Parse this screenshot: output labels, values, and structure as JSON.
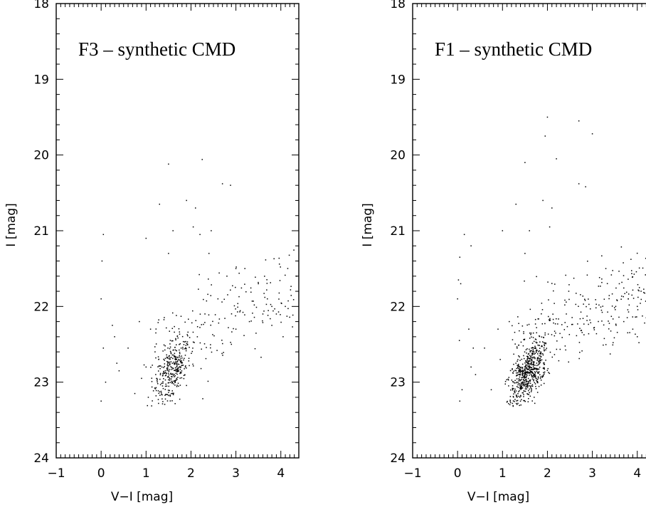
{
  "chart_data": [
    {
      "type": "scatter",
      "title": "F3 – synthetic CMD",
      "xlabel": "V−I [mag]",
      "ylabel": "I [mag]",
      "xlim": [
        -1,
        4.4
      ],
      "ylim": [
        24,
        18
      ],
      "y_inverted": true,
      "x_ticks": [
        -1,
        0,
        1,
        2,
        3,
        4
      ],
      "x_tick_labels": [
        "−1",
        "0",
        "1",
        "2",
        "3",
        "4"
      ],
      "y_ticks": [
        18,
        19,
        20,
        21,
        22,
        23,
        24
      ],
      "y_tick_labels": [
        "18",
        "19",
        "20",
        "21",
        "22",
        "23",
        "24"
      ],
      "grid": false,
      "sparse_points": [
        [
          1.5,
          20.12
        ],
        [
          2.25,
          20.06
        ],
        [
          2.7,
          20.38
        ],
        [
          2.88,
          20.4
        ],
        [
          1.0,
          21.1
        ],
        [
          1.3,
          20.65
        ],
        [
          0.05,
          21.05
        ],
        [
          0.02,
          21.4
        ],
        [
          0.0,
          21.9
        ],
        [
          0.05,
          22.55
        ],
        [
          0.25,
          22.25
        ],
        [
          0.3,
          22.4
        ],
        [
          0.35,
          22.75
        ],
        [
          0.4,
          22.85
        ],
        [
          0.1,
          23.0
        ],
        [
          0.0,
          23.25
        ],
        [
          0.6,
          22.55
        ],
        [
          0.75,
          23.15
        ],
        [
          1.9,
          20.6
        ],
        [
          2.1,
          20.7
        ],
        [
          2.05,
          20.95
        ],
        [
          2.2,
          21.05
        ],
        [
          1.6,
          21.0
        ],
        [
          1.5,
          21.3
        ],
        [
          2.45,
          21.0
        ],
        [
          2.4,
          21.3
        ],
        [
          2.8,
          21.6
        ],
        [
          3.0,
          21.5
        ],
        [
          3.2,
          21.5
        ],
        [
          2.6,
          21.9
        ],
        [
          3.5,
          21.7
        ],
        [
          3.7,
          21.9
        ],
        [
          3.8,
          22.0
        ],
        [
          3.9,
          22.1
        ],
        [
          4.1,
          22.0
        ],
        [
          3.6,
          22.1
        ],
        [
          3.3,
          22.2
        ],
        [
          3.0,
          22.3
        ],
        [
          2.9,
          22.5
        ],
        [
          4.35,
          21.6
        ],
        [
          4.05,
          22.4
        ],
        [
          3.8,
          22.25
        ],
        [
          0.9,
          22.95
        ],
        [
          1.0,
          22.8
        ],
        [
          0.85,
          22.2
        ],
        [
          1.1,
          22.3
        ],
        [
          1.2,
          22.6
        ],
        [
          1.05,
          23.2
        ]
      ],
      "dense_region": {
        "x_center": 1.6,
        "y_center": 22.85,
        "count": 330
      },
      "diffuse_region": {
        "x_range": [
          1.2,
          4.3
        ],
        "y_range": [
          21.2,
          22.6
        ],
        "count": 170
      }
    },
    {
      "type": "scatter",
      "title": "F1 – synthetic CMD",
      "xlabel": "V−I [mag]",
      "ylabel": "I [mag]",
      "xlim": [
        -1,
        4.4
      ],
      "ylim": [
        24,
        18
      ],
      "y_inverted": true,
      "x_ticks": [
        -1,
        0,
        1,
        2,
        3,
        4
      ],
      "x_tick_labels": [
        "−1",
        "0",
        "1",
        "2",
        "3",
        "4"
      ],
      "y_ticks": [
        18,
        19,
        20,
        21,
        22,
        23,
        24
      ],
      "y_tick_labels": [
        "18",
        "19",
        "20",
        "21",
        "22",
        "23",
        "24"
      ],
      "grid": false,
      "sparse_points": [
        [
          2.0,
          19.5
        ],
        [
          2.7,
          19.55
        ],
        [
          3.0,
          19.72
        ],
        [
          1.95,
          19.75
        ],
        [
          2.2,
          20.05
        ],
        [
          1.5,
          20.1
        ],
        [
          2.7,
          20.38
        ],
        [
          2.85,
          20.42
        ],
        [
          1.9,
          20.6
        ],
        [
          2.1,
          20.7
        ],
        [
          2.05,
          20.95
        ],
        [
          1.3,
          20.65
        ],
        [
          0.15,
          21.05
        ],
        [
          0.05,
          21.35
        ],
        [
          0.3,
          21.2
        ],
        [
          0.02,
          21.65
        ],
        [
          0.07,
          21.7
        ],
        [
          0.0,
          21.9
        ],
        [
          0.04,
          22.45
        ],
        [
          0.25,
          22.3
        ],
        [
          0.35,
          22.55
        ],
        [
          0.3,
          22.8
        ],
        [
          0.4,
          22.9
        ],
        [
          0.1,
          23.1
        ],
        [
          0.05,
          23.25
        ],
        [
          0.6,
          22.55
        ],
        [
          0.75,
          23.1
        ],
        [
          1.0,
          21.0
        ],
        [
          1.6,
          21.0
        ],
        [
          1.5,
          21.3
        ],
        [
          3.3,
          21.5
        ],
        [
          3.6,
          21.7
        ],
        [
          3.8,
          21.9
        ],
        [
          4.0,
          22.0
        ],
        [
          4.2,
          22.15
        ],
        [
          3.7,
          22.2
        ],
        [
          4.35,
          21.6
        ],
        [
          4.0,
          22.4
        ],
        [
          3.9,
          22.3
        ],
        [
          0.9,
          22.3
        ],
        [
          1.15,
          22.2
        ],
        [
          0.95,
          22.7
        ]
      ],
      "dense_region": {
        "x_center": 1.6,
        "y_center": 22.85,
        "count": 560
      },
      "diffuse_region": {
        "x_range": [
          1.2,
          4.3
        ],
        "y_range": [
          21.2,
          22.6
        ],
        "count": 260
      }
    }
  ]
}
